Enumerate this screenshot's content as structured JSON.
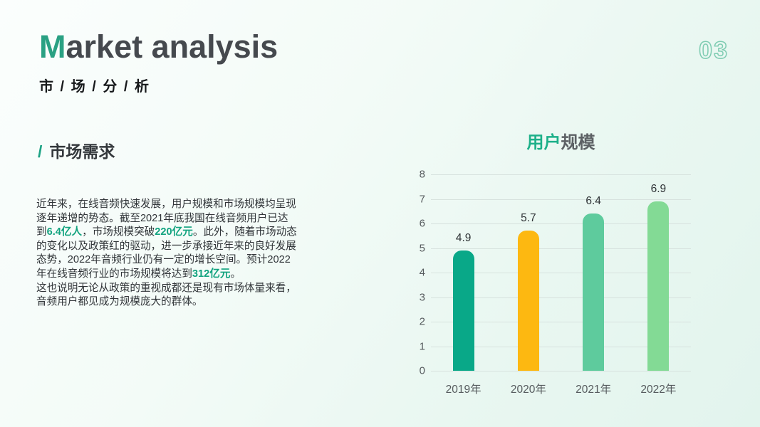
{
  "page": {
    "number": "03",
    "title_accent": "M",
    "title_rest": "arket analysis",
    "subtitle": "市 / 场 / 分 / 析"
  },
  "section": {
    "slash": "/",
    "heading": "市场需求",
    "paragraph_segments": [
      {
        "text": "近年来，在线音频快速发展，用户规模和市场规模均呈现逐年递增的势态。截至2021年底我国在线音频用户已达到",
        "highlight": false
      },
      {
        "text": "6.4亿人",
        "highlight": true
      },
      {
        "text": "，市场规模突破",
        "highlight": false
      },
      {
        "text": "220亿元",
        "highlight": true
      },
      {
        "text": "。此外，随着市场动态的变化以及政策红的驱动，进一步承接近年来的良好发展态势，2022年音频行业仍有一定的增长空间。预计2022年在线音频行业的市场规模将达到",
        "highlight": false
      },
      {
        "text": "312亿元",
        "highlight": true
      },
      {
        "text": "。\n这也说明无论从政策的重视成都还是现有市场体量来看，音频用户都见成为规模庞大的群体。",
        "highlight": false
      }
    ]
  },
  "chart": {
    "title_accent": "用户",
    "title_rest": "规模"
  },
  "chart_data": {
    "type": "bar",
    "title": "用户规模",
    "categories": [
      "2019年",
      "2020年",
      "2021年",
      "2022年"
    ],
    "values": [
      4.9,
      5.7,
      6.4,
      6.9
    ],
    "bar_colors": [
      "#09a888",
      "#fdb811",
      "#5ecb9d",
      "#83da95"
    ],
    "xlabel": "",
    "ylabel": "",
    "ylim": [
      0,
      8
    ],
    "ytick_step": 1,
    "grid": true,
    "legend_position": "none",
    "value_labels": true
  },
  "colors": {
    "accent_green": "#1ea385",
    "title_gray": "#45494e",
    "page_number_outline": "#7fccb2",
    "gridline": "#d7e2de",
    "background_mint": "#e2f4ed",
    "bar_2019": "#09a888",
    "bar_2020": "#fdb811",
    "bar_2021": "#5ecb9d",
    "bar_2022": "#83da95"
  }
}
